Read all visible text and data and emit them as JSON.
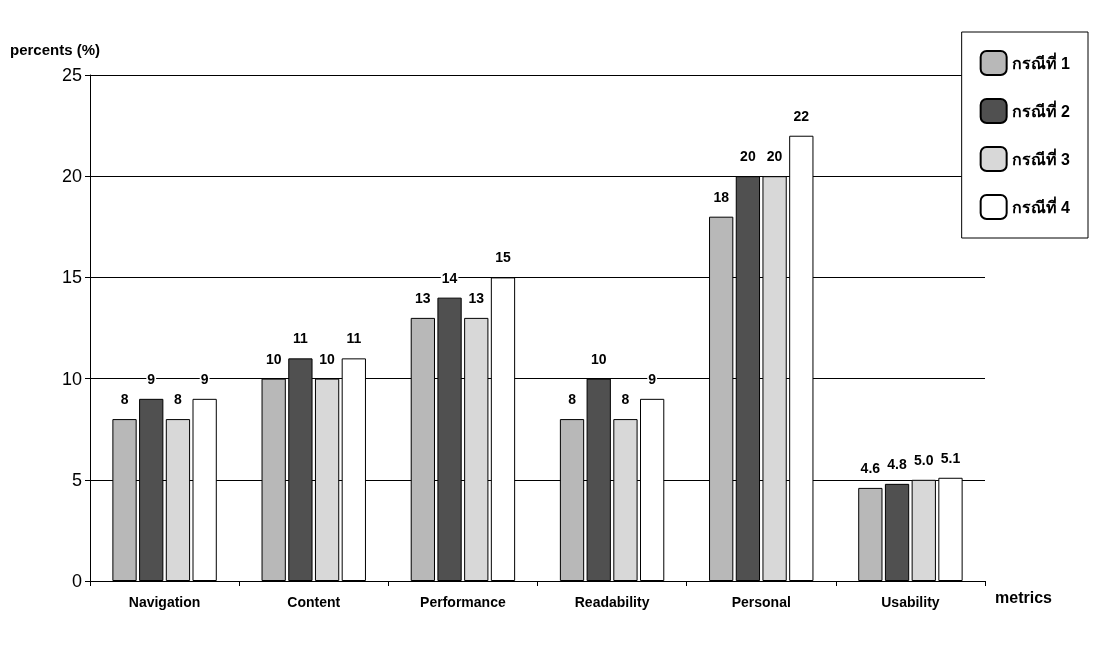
{
  "chart_data": {
    "type": "bar",
    "xlabel": "metrics",
    "ylabel": "percents (%)",
    "categories": [
      "Navigation",
      "Content",
      "Performance",
      "Readability",
      "Personal",
      "Usability"
    ],
    "series": [
      {
        "name": "กรณีที่ 1",
        "color": "#b8b8b8",
        "values": [
          8,
          10,
          13,
          8,
          18,
          4.6
        ],
        "value_labels": [
          "8",
          "10",
          "13",
          "8",
          "18",
          "4.6"
        ]
      },
      {
        "name": "กรณีที่ 2",
        "color": "#505050",
        "values": [
          9,
          11,
          14,
          10,
          20,
          4.8
        ],
        "value_labels": [
          "9",
          "11",
          "14",
          "10",
          "20",
          "4.8"
        ]
      },
      {
        "name": "กรณีที่ 3",
        "color": "#d8d8d8",
        "values": [
          8,
          10,
          13,
          8,
          20,
          5.0
        ],
        "value_labels": [
          "8",
          "10",
          "13",
          "8",
          "20",
          "5.0"
        ]
      },
      {
        "name": "กรณีที่ 4",
        "color": "#ffffff",
        "values": [
          9,
          11,
          15,
          9,
          22,
          5.1
        ],
        "value_labels": [
          "9",
          "11",
          "15",
          "9",
          "22",
          "5.1"
        ]
      }
    ],
    "ylim": [
      0,
      25
    ],
    "yticks": [
      0,
      5,
      10,
      15,
      20,
      25
    ],
    "grid": "y",
    "legend": "top right"
  }
}
